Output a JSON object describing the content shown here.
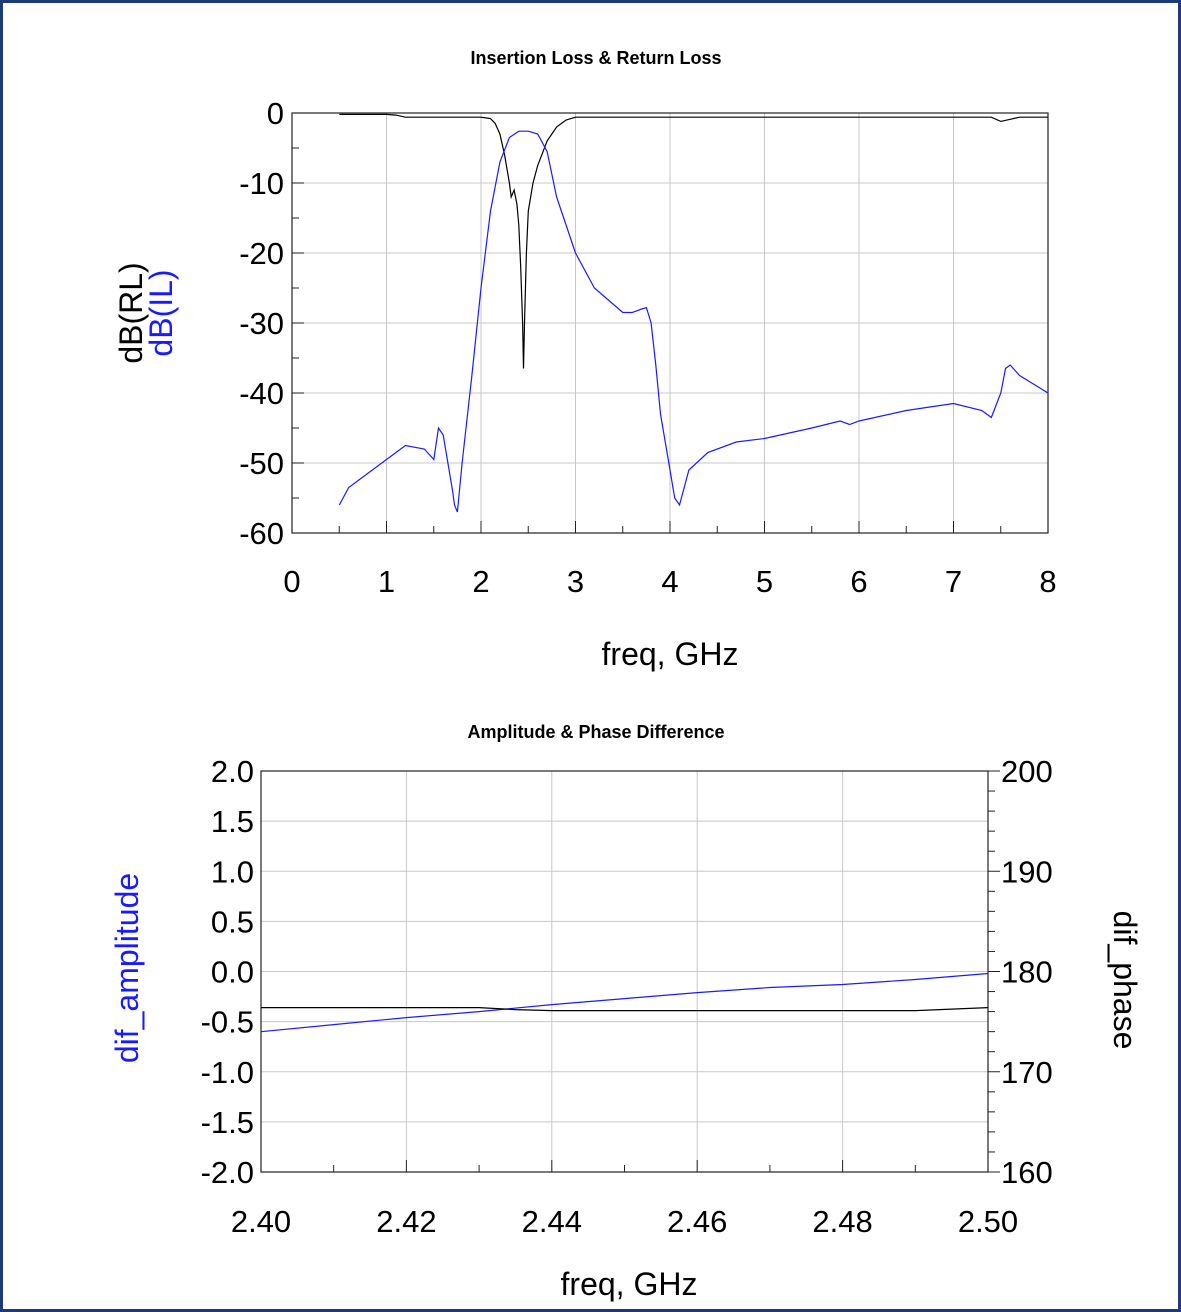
{
  "chart_data": [
    {
      "type": "line",
      "title": "Insertion Loss & Return Loss",
      "xlabel": "freq, GHz",
      "ylabels": [
        "dB(RL)",
        "dB(IL)"
      ],
      "xlim": [
        0,
        8
      ],
      "ylim": [
        -60,
        0
      ],
      "xticks": [
        "0",
        "1",
        "2",
        "3",
        "4",
        "5",
        "6",
        "7",
        "8"
      ],
      "yticks": [
        "0",
        "-10",
        "-20",
        "-30",
        "-40",
        "-50",
        "-60"
      ],
      "grid": true,
      "series": [
        {
          "name": "dB(RL)",
          "color": "#000000",
          "x": [
            0.5,
            1.0,
            1.1,
            1.2,
            1.5,
            2.0,
            2.1,
            2.15,
            2.2,
            2.25,
            2.3,
            2.32,
            2.35,
            2.38,
            2.4,
            2.42,
            2.44,
            2.45,
            2.46,
            2.48,
            2.5,
            2.55,
            2.6,
            2.7,
            2.8,
            2.9,
            3.0,
            4.0,
            5.0,
            6.0,
            7.0,
            7.4,
            7.5,
            7.6,
            7.7,
            8.0
          ],
          "y": [
            -0.2,
            -0.2,
            -0.3,
            -0.6,
            -0.6,
            -0.6,
            -0.8,
            -1.5,
            -3,
            -6,
            -10,
            -12,
            -11,
            -13,
            -16,
            -22,
            -30,
            -36.5,
            -30,
            -20,
            -14,
            -10,
            -7.5,
            -4,
            -2,
            -1,
            -0.6,
            -0.6,
            -0.6,
            -0.6,
            -0.6,
            -0.6,
            -1.2,
            -0.9,
            -0.6,
            -0.6
          ]
        },
        {
          "name": "dB(IL)",
          "color": "#1a1aff",
          "x": [
            0.5,
            0.6,
            0.8,
            1.0,
            1.2,
            1.4,
            1.5,
            1.55,
            1.6,
            1.65,
            1.7,
            1.72,
            1.75,
            1.8,
            1.9,
            2.0,
            2.1,
            2.2,
            2.3,
            2.4,
            2.5,
            2.6,
            2.7,
            2.8,
            3.0,
            3.2,
            3.5,
            3.6,
            3.7,
            3.75,
            3.8,
            3.85,
            3.9,
            4.0,
            4.05,
            4.1,
            4.2,
            4.4,
            4.7,
            5.0,
            5.5,
            5.8,
            5.9,
            6.0,
            6.5,
            7.0,
            7.3,
            7.4,
            7.5,
            7.55,
            7.6,
            7.7,
            8.0
          ],
          "y": [
            -56,
            -53.5,
            -51.5,
            -49.5,
            -47.5,
            -48,
            -49.5,
            -45,
            -46,
            -50,
            -54,
            -56,
            -57,
            -50,
            -38,
            -25,
            -14,
            -7,
            -3.5,
            -2.6,
            -2.6,
            -3,
            -5.5,
            -12,
            -20,
            -25,
            -28.5,
            -28.5,
            -28,
            -27.8,
            -30,
            -36,
            -43,
            -51,
            -55,
            -56,
            -51,
            -48.5,
            -47,
            -46.5,
            -45,
            -44,
            -44.5,
            -44,
            -42.5,
            -41.5,
            -42.5,
            -43.5,
            -40,
            -36.5,
            -36,
            -37.5,
            -40
          ]
        }
      ]
    },
    {
      "type": "line",
      "title": "Amplitude & Phase Difference",
      "xlabel": "freq, GHz",
      "ylabel_left": "dif_amplitude",
      "ylabel_right": "dif_phase",
      "xlim": [
        2.4,
        2.5
      ],
      "ylim_left": [
        -2.0,
        2.0
      ],
      "ylim_right": [
        160,
        200
      ],
      "xticks": [
        "2.40",
        "2.42",
        "2.44",
        "2.46",
        "2.48",
        "2.50"
      ],
      "yticks_left": [
        "2.0",
        "1.5",
        "1.0",
        "0.5",
        "0.0",
        "-0.5",
        "-1.0",
        "-1.5",
        "-2.0"
      ],
      "yticks_right": [
        "200",
        "190",
        "180",
        "170",
        "160"
      ],
      "grid": true,
      "series": [
        {
          "name": "dif_amplitude",
          "axis": "left",
          "color": "#1a1aff",
          "x": [
            2.4,
            2.41,
            2.42,
            2.43,
            2.44,
            2.45,
            2.46,
            2.47,
            2.48,
            2.49,
            2.5
          ],
          "y": [
            -0.6,
            -0.53,
            -0.46,
            -0.4,
            -0.33,
            -0.27,
            -0.21,
            -0.16,
            -0.13,
            -0.08,
            -0.02
          ]
        },
        {
          "name": "dif_phase",
          "axis": "right",
          "color": "#000000",
          "x": [
            2.4,
            2.41,
            2.42,
            2.43,
            2.435,
            2.44,
            2.45,
            2.46,
            2.47,
            2.48,
            2.49,
            2.5
          ],
          "y": [
            176.4,
            176.4,
            176.4,
            176.4,
            176.2,
            176.1,
            176.1,
            176.1,
            176.1,
            176.1,
            176.1,
            176.4
          ]
        }
      ]
    }
  ]
}
